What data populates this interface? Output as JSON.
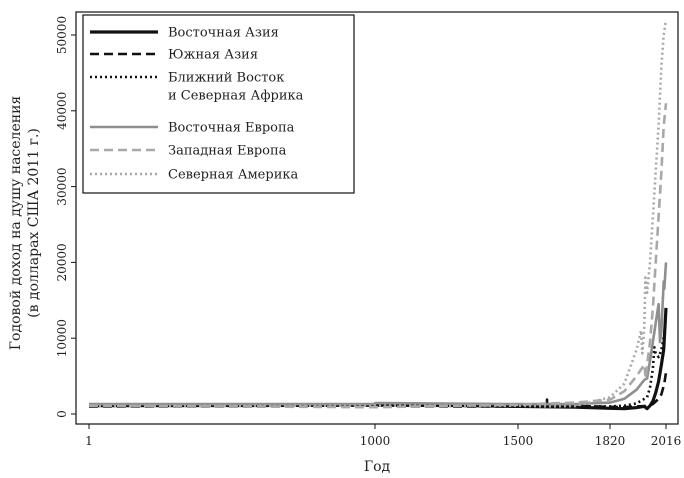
{
  "chart_data": {
    "type": "line",
    "xlabel": "Год",
    "ylabel_lines": [
      "Годовой доход на душу населения",
      "(в долларах США 2011 г.)"
    ],
    "x_ticks": [
      1,
      1000,
      1500,
      1820,
      2016
    ],
    "y_ticks": [
      0,
      10000,
      20000,
      30000,
      40000,
      50000
    ],
    "y_tick_labels": [
      "0",
      "10000",
      "20000",
      "30000",
      "40000",
      "50000"
    ],
    "ylim": [
      0,
      52000
    ],
    "grid": false,
    "legend_position": "top-left",
    "series": [
      {
        "name": "Восточная Азия",
        "color": "#111111",
        "dash": "solid",
        "width": 3.2,
        "points": [
          [
            1,
            1100
          ],
          [
            1000,
            1150
          ],
          [
            1300,
            1120
          ],
          [
            1500,
            1000
          ],
          [
            1600,
            950
          ],
          [
            1700,
            900
          ],
          [
            1820,
            750
          ],
          [
            1870,
            700
          ],
          [
            1913,
            850
          ],
          [
            1940,
            1000
          ],
          [
            1950,
            700
          ],
          [
            1960,
            1100
          ],
          [
            1970,
            1700
          ],
          [
            1980,
            2800
          ],
          [
            1990,
            4300
          ],
          [
            2000,
            6500
          ],
          [
            2008,
            8500
          ],
          [
            2016,
            14000
          ]
        ]
      },
      {
        "name": "Южная Азия",
        "color": "#111111",
        "dash": "9 5",
        "width": 2.6,
        "points": [
          [
            1,
            1000
          ],
          [
            1000,
            1000
          ],
          [
            1500,
            1000
          ],
          [
            1600,
            1050
          ],
          [
            1601,
            1900
          ],
          [
            1602,
            1100
          ],
          [
            1700,
            1050
          ],
          [
            1820,
            950
          ],
          [
            1870,
            900
          ],
          [
            1913,
            1000
          ],
          [
            1940,
            1050
          ],
          [
            1950,
            1000
          ],
          [
            1970,
            1300
          ],
          [
            1990,
            2000
          ],
          [
            2000,
            2600
          ],
          [
            2010,
            4000
          ],
          [
            2016,
            5500
          ]
        ]
      },
      {
        "name": "Ближний Восток",
        "name_line2": "и Северная Африка",
        "color": "#111111",
        "dash": "2 3",
        "width": 2.6,
        "points": [
          [
            1,
            1200
          ],
          [
            1000,
            1100
          ],
          [
            1500,
            1050
          ],
          [
            1700,
            1000
          ],
          [
            1820,
            1000
          ],
          [
            1870,
            1100
          ],
          [
            1913,
            1400
          ],
          [
            1950,
            2200
          ],
          [
            1960,
            3500
          ],
          [
            1970,
            6000
          ],
          [
            1975,
            8800
          ],
          [
            1980,
            8000
          ],
          [
            1990,
            7500
          ],
          [
            2000,
            8500
          ],
          [
            2010,
            10500
          ],
          [
            2016,
            11000
          ]
        ]
      },
      {
        "name": "Восточная Европа",
        "color": "#8f8f8f",
        "dash": "solid",
        "width": 2.6,
        "points": [
          [
            1,
            1300
          ],
          [
            1000,
            1300
          ],
          [
            1001,
            1450
          ],
          [
            1500,
            1300
          ],
          [
            1600,
            1300
          ],
          [
            1700,
            1300
          ],
          [
            1820,
            1500
          ],
          [
            1870,
            2000
          ],
          [
            1913,
            3200
          ],
          [
            1940,
            4500
          ],
          [
            1950,
            4700
          ],
          [
            1960,
            7000
          ],
          [
            1970,
            9500
          ],
          [
            1980,
            12000
          ],
          [
            1990,
            14500
          ],
          [
            1995,
            9500
          ],
          [
            2000,
            11000
          ],
          [
            2008,
            17500
          ],
          [
            2010,
            16500
          ],
          [
            2016,
            20000
          ]
        ]
      },
      {
        "name": "Западная Европа",
        "color": "#a8a8a8",
        "dash": "9 5",
        "width": 2.6,
        "points": [
          [
            1,
            1100
          ],
          [
            1000,
            900
          ],
          [
            1300,
            1100
          ],
          [
            1500,
            1200
          ],
          [
            1600,
            1400
          ],
          [
            1700,
            1500
          ],
          [
            1820,
            1900
          ],
          [
            1870,
            3000
          ],
          [
            1913,
            5000
          ],
          [
            1940,
            6500
          ],
          [
            1945,
            4700
          ],
          [
            1950,
            6500
          ],
          [
            1960,
            9500
          ],
          [
            1970,
            14000
          ],
          [
            1980,
            20000
          ],
          [
            1990,
            26000
          ],
          [
            2000,
            32000
          ],
          [
            2008,
            38000
          ],
          [
            2016,
            41000
          ]
        ]
      },
      {
        "name": "Северная Америка",
        "color": "#a8a8a8",
        "dash": "2 3",
        "width": 2.6,
        "points": [
          [
            1,
            1100
          ],
          [
            1000,
            1100
          ],
          [
            1500,
            1100
          ],
          [
            1600,
            1000
          ],
          [
            1700,
            1050
          ],
          [
            1820,
            2200
          ],
          [
            1870,
            4000
          ],
          [
            1913,
            8500
          ],
          [
            1929,
            11000
          ],
          [
            1933,
            8000
          ],
          [
            1940,
            11500
          ],
          [
            1944,
            18000
          ],
          [
            1950,
            16000
          ],
          [
            1960,
            20000
          ],
          [
            1970,
            26000
          ],
          [
            1980,
            32000
          ],
          [
            1990,
            38000
          ],
          [
            2000,
            46000
          ],
          [
            2008,
            50000
          ],
          [
            2016,
            52000
          ]
        ]
      }
    ]
  }
}
